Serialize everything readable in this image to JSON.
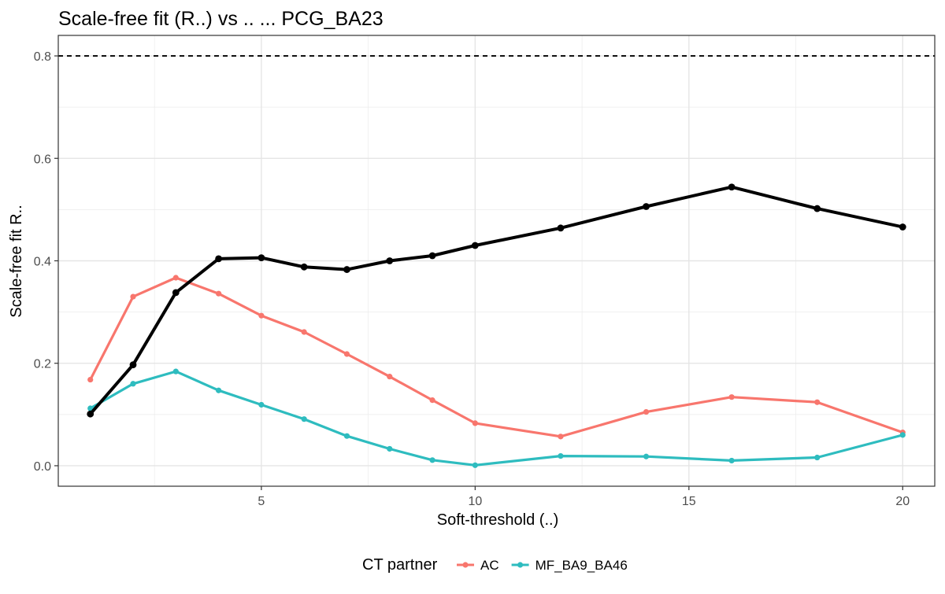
{
  "chart_data": {
    "type": "line",
    "title": "Scale-free fit (R..) vs .. ... PCG_BA23",
    "xlabel": "Soft-threshold (..)",
    "ylabel": "Scale-free fit R..",
    "xlim": [
      0.25,
      20.75
    ],
    "ylim": [
      -0.04,
      0.84
    ],
    "x_ticks": [
      5,
      10,
      15,
      20
    ],
    "y_ticks": [
      0.0,
      0.2,
      0.4,
      0.6,
      0.8
    ],
    "grid": true,
    "reference_line": {
      "y": 0.8,
      "style": "dashed",
      "color": "#000000"
    },
    "legend": {
      "title": "CT partner",
      "position": "bottom",
      "entries": [
        {
          "name": "AC",
          "color": "#F8766D"
        },
        {
          "name": "MF_BA9_BA46",
          "color": "#2EBCBF"
        }
      ]
    },
    "x": [
      1,
      2,
      3,
      4,
      5,
      6,
      7,
      8,
      9,
      10,
      12,
      14,
      16,
      18,
      20
    ],
    "series": [
      {
        "color": "#000000",
        "values": [
          0.101,
          0.197,
          0.338,
          0.404,
          0.406,
          0.388,
          0.383,
          0.4,
          0.41,
          0.43,
          0.464,
          0.506,
          0.544,
          0.502,
          0.466
        ]
      },
      {
        "name": "AC",
        "color": "#F8766D",
        "values": [
          0.168,
          0.33,
          0.367,
          0.336,
          0.293,
          0.261,
          0.218,
          0.174,
          0.128,
          0.083,
          0.057,
          0.105,
          0.134,
          0.124,
          0.065
        ]
      },
      {
        "name": "MF_BA9_BA46",
        "color": "#2EBCBF",
        "values": [
          0.112,
          0.16,
          0.184,
          0.147,
          0.119,
          0.091,
          0.058,
          0.033,
          0.011,
          0.001,
          0.019,
          0.018,
          0.01,
          0.016,
          0.06
        ]
      }
    ]
  }
}
